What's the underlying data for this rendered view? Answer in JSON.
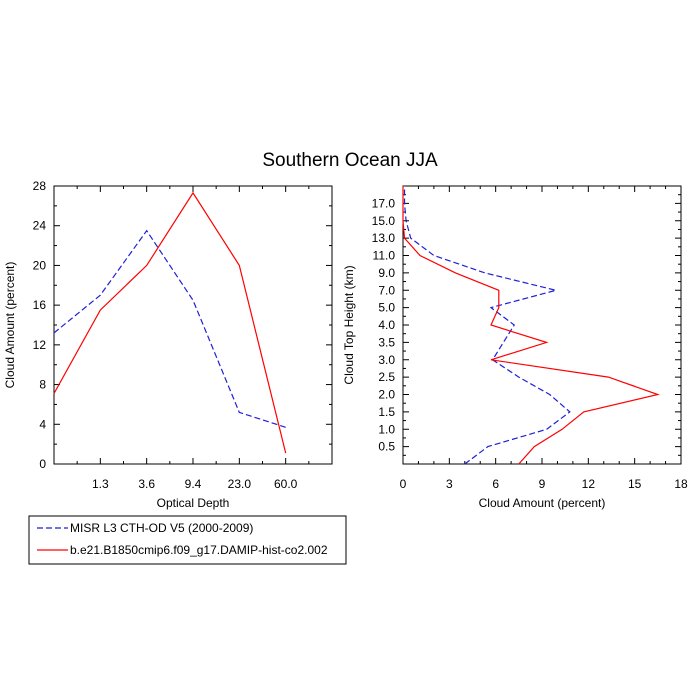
{
  "title": "Southern Ocean JJA",
  "legend": [
    {
      "label": "MISR L3 CTH-OD V5 (2000-2009)",
      "color": "#1f1fd9",
      "dash": true
    },
    {
      "label": "b.e21.B1850cmip6.f09_g17.DAMIP-hist-co2.002",
      "color": "#ff0000",
      "dash": false
    }
  ],
  "chart_data": [
    {
      "type": "line",
      "xlabel": "Optical Depth",
      "ylabel": "Cloud Amount (percent)",
      "x_tick_labels": [
        "1.3",
        "3.6",
        "9.4",
        "23.0",
        "60.0"
      ],
      "ylim": [
        0,
        28
      ],
      "y_ticks": [
        0,
        4,
        8,
        12,
        16,
        20,
        24,
        28
      ],
      "series": [
        {
          "name": "MISR L3 CTH-OD V5 (2000-2009)",
          "x": [
            "0.3",
            "1.3",
            "3.6",
            "9.4",
            "23.0",
            "60.0",
            "150.0"
          ],
          "values": [
            13.2,
            17.0,
            23.5,
            16.5,
            5.2,
            3.7,
            null
          ],
          "color": "#1f1fd9",
          "dash": true
        },
        {
          "name": "b.e21.B1850cmip6.f09_g17.DAMIP-hist-co2.002",
          "x": [
            "0.3",
            "1.3",
            "3.6",
            "9.4",
            "23.0",
            "60.0",
            "150.0"
          ],
          "values": [
            7.1,
            15.5,
            20.0,
            27.3,
            20.0,
            1.1,
            null
          ],
          "color": "#ff0000",
          "dash": false
        }
      ]
    },
    {
      "type": "line",
      "xlabel": "Cloud Amount (percent)",
      "ylabel": "Cloud Top Height (km)",
      "xlim": [
        0,
        18
      ],
      "x_ticks": [
        0,
        3,
        6,
        9,
        12,
        15,
        18
      ],
      "y_tick_labels": [
        "0.5",
        "1.0",
        "1.5",
        "2.0",
        "2.5",
        "3.0",
        "3.5",
        "4.0",
        "5.0",
        "7.0",
        "9.0",
        "11.0",
        "13.0",
        "15.0",
        "17.0"
      ],
      "series": [
        {
          "name": "MISR L3 CTH-OD V5 (2000-2009)",
          "heights": [
            "0.25",
            "0.5",
            "1.0",
            "1.5",
            "2.0",
            "2.5",
            "3.0",
            "3.5",
            "4.0",
            "5.0",
            "7.0",
            "9.0",
            "11.0",
            "13.0",
            "15.0",
            "17.0",
            "18.5"
          ],
          "values": [
            4.0,
            5.5,
            9.3,
            10.8,
            9.5,
            7.5,
            5.8,
            6.5,
            7.2,
            5.7,
            9.9,
            5.3,
            2.0,
            0.5,
            0.2,
            0.1,
            0.1
          ],
          "color": "#1f1fd9",
          "dash": true
        },
        {
          "name": "b.e21.B1850cmip6.f09_g17.DAMIP-hist-co2.002",
          "heights": [
            "0.25",
            "0.5",
            "1.0",
            "1.5",
            "2.0",
            "2.5",
            "3.0",
            "3.5",
            "4.0",
            "5.0",
            "7.0",
            "9.0",
            "11.0",
            "13.0",
            "15.0",
            "17.0",
            "18.5"
          ],
          "values": [
            7.5,
            8.5,
            10.3,
            11.7,
            16.5,
            13.3,
            5.7,
            9.3,
            5.7,
            6.2,
            6.2,
            3.4,
            1.1,
            0.1,
            0.0,
            0.0,
            0.0
          ],
          "color": "#ff0000",
          "dash": false
        }
      ]
    }
  ]
}
